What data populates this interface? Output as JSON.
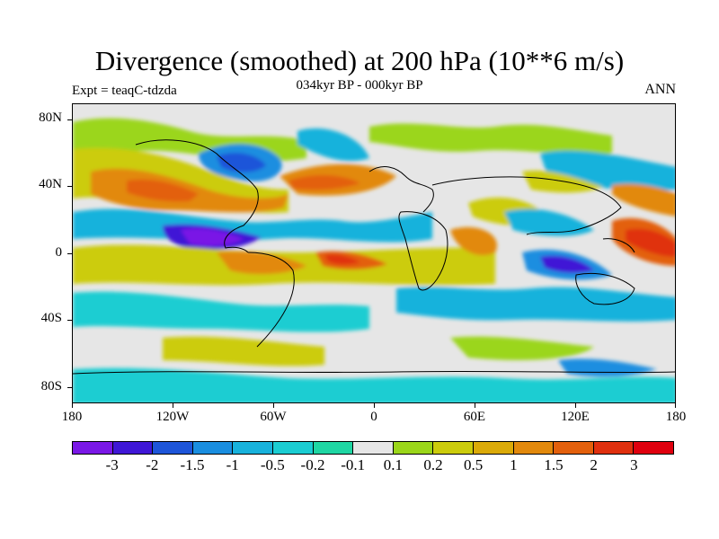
{
  "title": "Divergence (smoothed) at 200 hPa (10**6 m/s)",
  "subtitle": "034kyr BP - 000kyr BP",
  "left_label": "Expt = teaqC-tdzda",
  "right_label": "ANN",
  "map": {
    "lat_ticks": [
      "80N",
      "40N",
      "0",
      "40S",
      "80S"
    ],
    "lon_ticks": [
      "180",
      "120W",
      "60W",
      "0",
      "60E",
      "120E",
      "180"
    ]
  },
  "colorbar": {
    "labels": [
      "-3",
      "-2",
      "-1.5",
      "-1",
      "-0.5",
      "-0.2",
      "-0.1",
      "0.1",
      "0.2",
      "0.5",
      "1",
      "1.5",
      "2",
      "3"
    ],
    "colors": [
      "#7a18e6",
      "#3f17d6",
      "#1e55d9",
      "#1a8ee0",
      "#18b2dc",
      "#1bcdd2",
      "#1fd6a3",
      "#e6e6e6",
      "#9bd61a",
      "#cccc0c",
      "#dbaa08",
      "#e2890c",
      "#e3600c",
      "#e0300e",
      "#e0000e"
    ]
  }
}
